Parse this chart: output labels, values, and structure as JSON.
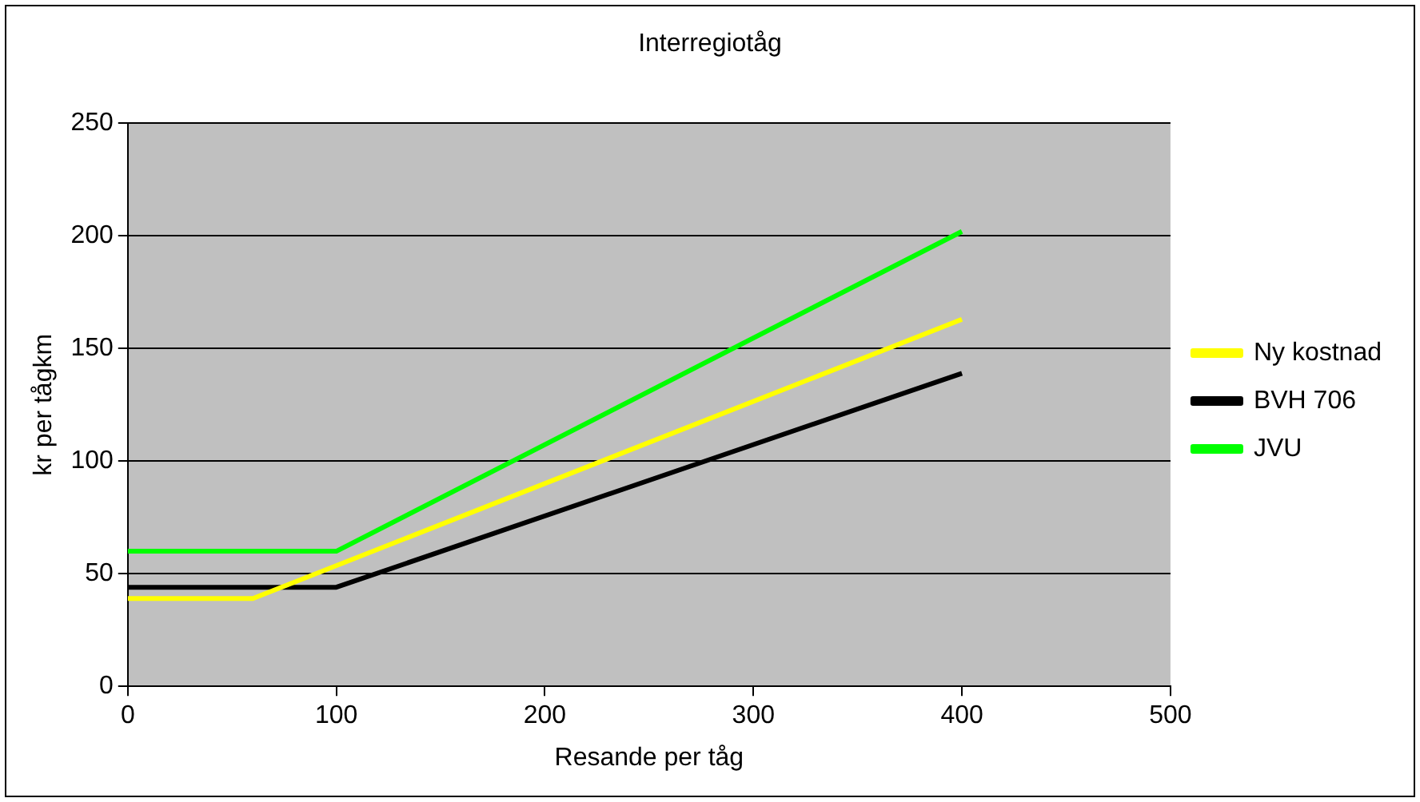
{
  "chart_data": {
    "type": "line",
    "title": "Interregiotåg",
    "xlabel": "Resande per tåg",
    "ylabel": "kr per tågkm",
    "xlim": [
      0,
      500
    ],
    "xticks": [
      0,
      100,
      200,
      300,
      400,
      500
    ],
    "ylim": [
      0,
      250
    ],
    "yticks": [
      0,
      50,
      100,
      150,
      200,
      250
    ],
    "grid": "y",
    "legend": "right",
    "marker": "none",
    "line_style": "solid",
    "series": [
      {
        "name": "Ny kostnad",
        "color": "#ffff00",
        "x": [
          0,
          60,
          400
        ],
        "values": [
          39,
          39,
          163
        ]
      },
      {
        "name": "BVH 706",
        "color": "#000000",
        "x": [
          0,
          100,
          400
        ],
        "values": [
          44,
          44,
          139
        ]
      },
      {
        "name": "JVU",
        "color": "#00ff00",
        "x": [
          0,
          100,
          400
        ],
        "values": [
          60,
          60,
          202
        ]
      }
    ]
  }
}
